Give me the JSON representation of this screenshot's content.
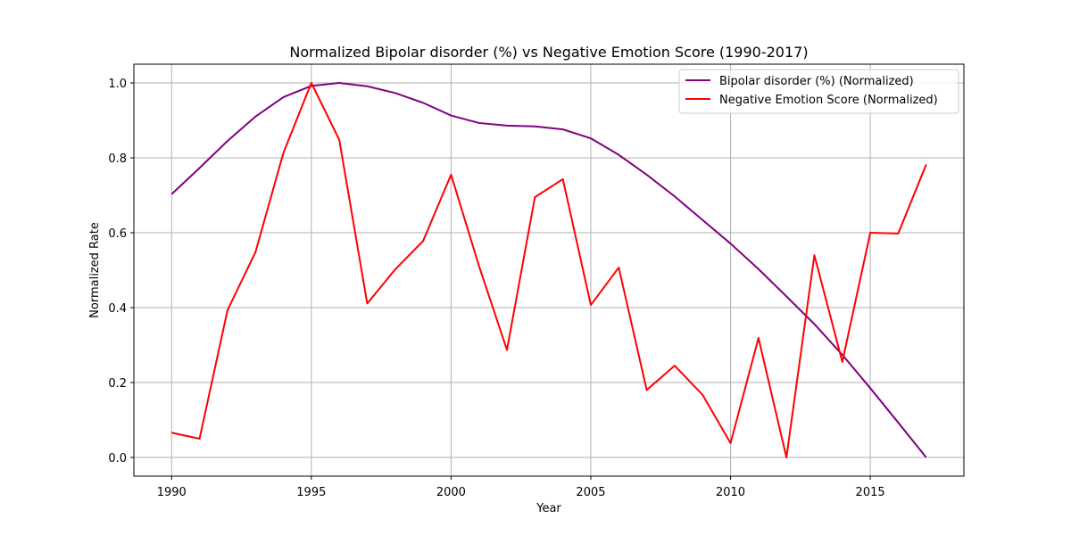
{
  "chart_data": {
    "type": "line",
    "title": "Normalized Bipolar disorder (%) vs Negative Emotion Score (1990-2017)",
    "xlabel": "Year",
    "ylabel": "Normalized Rate",
    "xlim": [
      1988.65,
      2018.35
    ],
    "ylim": [
      -0.05,
      1.05
    ],
    "xticks": [
      1990,
      1995,
      2000,
      2005,
      2010,
      2015
    ],
    "yticks": [
      "0.0",
      "0.2",
      "0.4",
      "0.6",
      "0.8",
      "1.0"
    ],
    "grid": true,
    "legend_position": "top-right",
    "x": [
      1990,
      1991,
      1992,
      1993,
      1994,
      1995,
      1996,
      1997,
      1998,
      1999,
      2000,
      2001,
      2002,
      2003,
      2004,
      2005,
      2006,
      2007,
      2008,
      2009,
      2010,
      2011,
      2012,
      2013,
      2014,
      2015,
      2016,
      2017
    ],
    "series": [
      {
        "name": "Bipolar disorder (%) (Normalized)",
        "color": "#800080",
        "values": [
          0.703,
          0.773,
          0.845,
          0.91,
          0.962,
          0.992,
          1.0,
          0.991,
          0.973,
          0.947,
          0.913,
          0.893,
          0.886,
          0.884,
          0.876,
          0.852,
          0.808,
          0.755,
          0.697,
          0.634,
          0.571,
          0.503,
          0.43,
          0.356,
          0.274,
          0.185,
          0.093,
          0.0
        ]
      },
      {
        "name": "Negative Emotion Score (Normalized)",
        "color": "#ff0000",
        "values": [
          0.066,
          0.05,
          0.393,
          0.548,
          0.813,
          1.0,
          0.848,
          0.411,
          0.502,
          0.578,
          0.755,
          0.511,
          0.287,
          0.695,
          0.743,
          0.407,
          0.507,
          0.18,
          0.245,
          0.167,
          0.038,
          0.319,
          0.0,
          0.54,
          0.255,
          0.6,
          0.598,
          0.782
        ]
      }
    ]
  }
}
